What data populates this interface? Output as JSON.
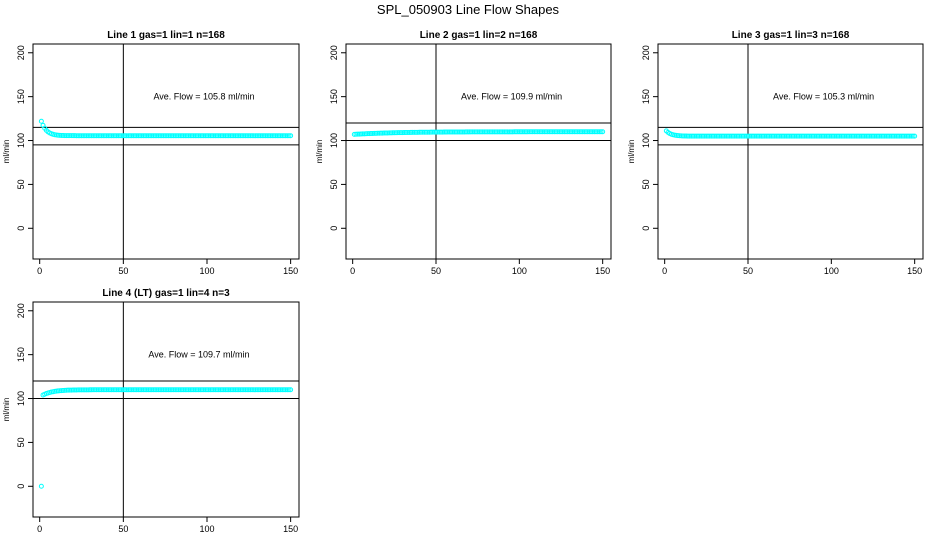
{
  "page": {
    "title": "SPL_050903  Line Flow Shapes"
  },
  "colors": {
    "points": "#00ffff",
    "axes": "#000000",
    "background": "#ffffff"
  },
  "chart_data": [
    {
      "type": "scatter",
      "title": "Line 1 gas=1 lin=1 n=168",
      "ylabel": "ml/min",
      "xlim": [
        -4,
        155
      ],
      "ylim": [
        -35,
        210
      ],
      "xticks": [
        0,
        50,
        100,
        150
      ],
      "yticks": [
        0,
        50,
        100,
        150,
        200
      ],
      "vline": 50,
      "hlines": [
        95,
        115
      ],
      "annotation": {
        "text": "Ave. Flow =  105.8  ml/min",
        "x": 68,
        "y": 147
      },
      "series": [
        {
          "shape": "decay",
          "x_range": [
            1,
            150
          ],
          "count": 150,
          "start": 122,
          "end": 105.5,
          "tau": 3
        }
      ]
    },
    {
      "type": "scatter",
      "title": "Line 2 gas=1 lin=2 n=168",
      "ylabel": "ml/min",
      "xlim": [
        -4,
        155
      ],
      "ylim": [
        -35,
        210
      ],
      "xticks": [
        0,
        50,
        100,
        150
      ],
      "yticks": [
        0,
        50,
        100,
        150,
        200
      ],
      "vline": 50,
      "hlines": [
        100,
        120
      ],
      "annotation": {
        "text": "Ave. Flow =  109.9  ml/min",
        "x": 65,
        "y": 147
      },
      "series": [
        {
          "shape": "rise",
          "x_range": [
            1,
            150
          ],
          "count": 150,
          "start": 107,
          "end": 110,
          "tau": 25
        }
      ]
    },
    {
      "type": "scatter",
      "title": "Line 3 gas=1 lin=3 n=168",
      "ylabel": "ml/min",
      "xlim": [
        -4,
        155
      ],
      "ylim": [
        -35,
        210
      ],
      "xticks": [
        0,
        50,
        100,
        150
      ],
      "yticks": [
        0,
        50,
        100,
        150,
        200
      ],
      "vline": 50,
      "hlines": [
        95,
        115
      ],
      "annotation": {
        "text": "Ave. Flow =  105.3  ml/min",
        "x": 65,
        "y": 147
      },
      "series": [
        {
          "shape": "decay",
          "x_range": [
            1,
            150
          ],
          "count": 150,
          "start": 111,
          "end": 105,
          "tau": 3
        }
      ]
    },
    {
      "type": "scatter",
      "title": "Line 4 (LT) gas=1 lin=4 n=3",
      "ylabel": "ml/min",
      "xlim": [
        -4,
        155
      ],
      "ylim": [
        -35,
        210
      ],
      "xticks": [
        0,
        50,
        100,
        150
      ],
      "yticks": [
        0,
        50,
        100,
        150,
        200
      ],
      "vline": 50,
      "hlines": [
        100,
        120
      ],
      "annotation": {
        "text": "Ave. Flow =  109.7  ml/min",
        "x": 65,
        "y": 147
      },
      "series": [
        {
          "shape": "single",
          "x": 1,
          "y": 0
        },
        {
          "shape": "rise",
          "x_range": [
            2,
            150
          ],
          "count": 149,
          "start": 104,
          "end": 110,
          "tau": 6
        }
      ]
    }
  ]
}
